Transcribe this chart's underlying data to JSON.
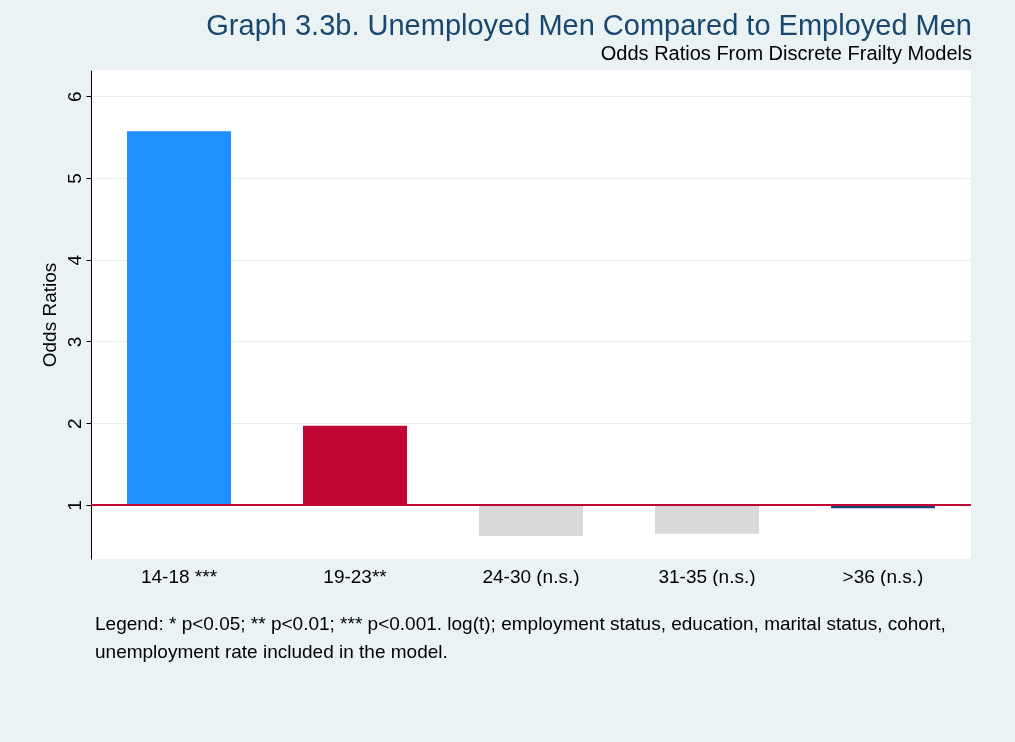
{
  "chart_data": {
    "type": "bar",
    "title": "Graph 3.3b. Unemployed Men Compared to Employed Men",
    "subtitle": "Odds Ratios From Discrete Frailty Models",
    "ylabel": "Odds Ratios",
    "categories": [
      "14-18 ***",
      "19-23**",
      "24-30 (n.s.)",
      "31-35 (n.s.)",
      ">36 (n.s.)"
    ],
    "base": [
      1,
      1,
      1,
      1,
      1
    ],
    "values": [
      4.57,
      0.97,
      -0.38,
      -0.35,
      -0.04
    ],
    "colors": [
      "#1e90ff",
      "#c10534",
      "#d9d9d9",
      "#d9d9d9",
      "#1a476f"
    ],
    "ylim": [
      0.34,
      6.32
    ],
    "yticks": [
      1,
      2,
      3,
      4,
      5,
      6
    ],
    "grid": "y",
    "ref_lines": [
      {
        "axis": "y",
        "value": 1,
        "color": "#c10534"
      }
    ],
    "annotations": [
      "Legend: * p<0.05; ** p<0.01; *** p<0.001. log(t); employment status, education, marital status, cohort, unemployment rate included in the model."
    ]
  }
}
